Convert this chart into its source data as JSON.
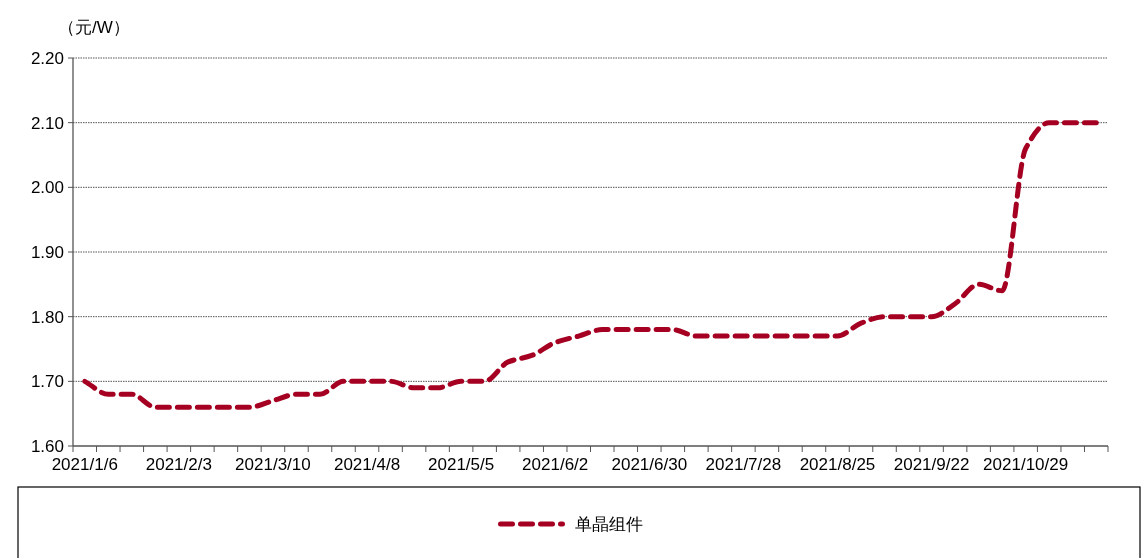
{
  "chart_data": {
    "type": "line",
    "ylabel": "（元/W）",
    "categories": [
      "2021/1/6",
      null,
      null,
      null,
      "2021/2/3",
      null,
      null,
      null,
      "2021/3/10",
      null,
      null,
      null,
      "2021/4/8",
      null,
      null,
      null,
      "2021/5/5",
      null,
      null,
      null,
      "2021/6/2",
      null,
      null,
      null,
      "2021/6/30",
      null,
      null,
      null,
      "2021/7/28",
      null,
      null,
      null,
      "2021/8/25",
      null,
      null,
      null,
      "2021/9/22",
      null,
      null,
      null,
      "2021/10/29",
      null,
      null,
      null
    ],
    "series": [
      {
        "name": "单晶组件",
        "color": "#a50021",
        "values": [
          1.7,
          1.68,
          1.68,
          1.66,
          1.66,
          1.66,
          1.66,
          1.66,
          1.67,
          1.68,
          1.68,
          1.7,
          1.7,
          1.7,
          1.69,
          1.69,
          1.7,
          1.7,
          1.73,
          1.74,
          1.76,
          1.77,
          1.78,
          1.78,
          1.78,
          1.78,
          1.77,
          1.77,
          1.77,
          1.77,
          1.77,
          1.77,
          1.77,
          1.79,
          1.8,
          1.8,
          1.8,
          1.82,
          1.85,
          1.84,
          2.06,
          2.1,
          2.1,
          2.1
        ]
      }
    ],
    "ylim": [
      1.6,
      2.2
    ],
    "yticks": [
      {
        "value": 1.6,
        "label": "1.60"
      },
      {
        "value": 1.7,
        "label": "1.70"
      },
      {
        "value": 1.8,
        "label": "1.80"
      },
      {
        "value": 1.9,
        "label": "1.90"
      },
      {
        "value": 2.0,
        "label": "2.00"
      },
      {
        "value": 2.1,
        "label": "2.10"
      },
      {
        "value": 2.2,
        "label": "2.20"
      }
    ],
    "grid": "y",
    "legend": "bottom",
    "line_style": "dashed"
  }
}
